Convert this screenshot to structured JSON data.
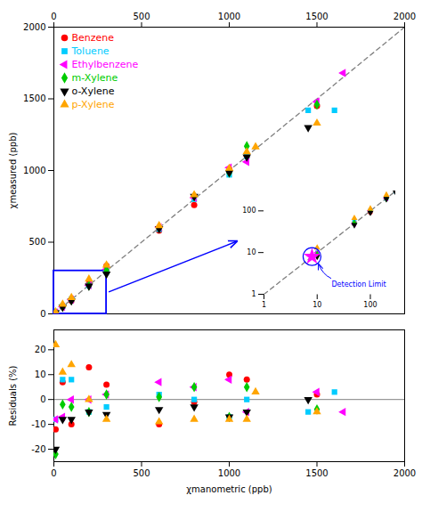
{
  "chart_data": [
    {
      "type": "scatter",
      "ylabel": "χmeasured (ppb)",
      "xlim": [
        0,
        2000
      ],
      "ylim": [
        0,
        2000
      ],
      "xticks": [
        0,
        500,
        1000,
        1500,
        2000
      ],
      "yticks": [
        0,
        500,
        1000,
        1500,
        2000
      ],
      "legend": "upper left",
      "diagonal": {
        "line_style": "dashed"
      },
      "zoom_box": {
        "x": [
          0,
          300
        ],
        "y": [
          0,
          300
        ],
        "color": "blue"
      },
      "series": [
        {
          "name": "Benzene",
          "color": "red",
          "marker": "circle",
          "x": [
            10,
            50,
            100,
            200,
            300,
            600,
            800,
            1000,
            1100,
            1500
          ],
          "values": [
            9,
            52,
            92,
            210,
            335,
            580,
            760,
            1010,
            1100,
            1450
          ]
        },
        {
          "name": "Toluene",
          "color": "#00ccff",
          "marker": "square",
          "x": [
            10,
            50,
            100,
            200,
            300,
            600,
            800,
            1000,
            1100,
            1450,
            1600
          ],
          "values": [
            10,
            54,
            102,
            198,
            295,
            590,
            800,
            970,
            1100,
            1420,
            1420
          ]
        },
        {
          "name": "Ethylbenzene",
          "color": "magenta",
          "marker": "triangle-left",
          "x": [
            10,
            50,
            100,
            200,
            300,
            600,
            800,
            1000,
            1100,
            1500,
            1650
          ],
          "values": [
            10,
            49,
            100,
            200,
            310,
            605,
            810,
            1020,
            1060,
            1480,
            1680
          ]
        },
        {
          "name": "m-Xylene",
          "color": "#00cc00",
          "marker": "diamond",
          "x": [
            10,
            50,
            100,
            200,
            300,
            600,
            800,
            1000,
            1100,
            1500
          ],
          "values": [
            9,
            51,
            97,
            197,
            305,
            600,
            820,
            985,
            1170,
            1460
          ]
        },
        {
          "name": "o-Xylene",
          "color": "black",
          "marker": "triangle-down",
          "x": [
            10,
            50,
            100,
            200,
            300,
            600,
            800,
            1000,
            1100,
            1450
          ],
          "values": [
            8,
            46,
            91,
            194,
            278,
            595,
            820,
            985,
            1095,
            1300
          ]
        },
        {
          "name": "p-Xylene",
          "color": "orange",
          "marker": "triangle-up",
          "x": [
            10,
            50,
            100,
            200,
            300,
            600,
            800,
            1000,
            1100,
            1150,
            1500
          ],
          "values": [
            13,
            67,
            113,
            242,
            340,
            615,
            830,
            1015,
            1130,
            1165,
            1330
          ]
        }
      ]
    },
    {
      "type": "scatter",
      "xlabel": "χmanometric (ppb)",
      "ylabel": "Residuals (%)",
      "xlim": [
        0,
        2000
      ],
      "ylim": [
        -25,
        28
      ],
      "xticks": [
        0,
        500,
        1000,
        1500,
        2000
      ],
      "yticks": [
        -20,
        -10,
        0,
        10,
        20
      ],
      "baseline": 0,
      "series": [
        {
          "name": "Benzene",
          "color": "red",
          "marker": "circle",
          "x": [
            10,
            50,
            100,
            200,
            300,
            600,
            800,
            1000,
            1100,
            1500
          ],
          "values": [
            -12,
            7,
            -10,
            13,
            6,
            -10,
            -1,
            10,
            8,
            2
          ]
        },
        {
          "name": "Toluene",
          "color": "#00ccff",
          "marker": "square",
          "x": [
            10,
            50,
            100,
            200,
            300,
            600,
            800,
            1000,
            1100,
            1450,
            1600
          ],
          "values": [
            -8,
            8,
            8,
            -5,
            -3,
            2,
            0,
            -7,
            0,
            -5,
            3
          ]
        },
        {
          "name": "Ethylbenzene",
          "color": "magenta",
          "marker": "triangle-left",
          "x": [
            10,
            50,
            100,
            200,
            300,
            600,
            800,
            1000,
            1100,
            1500,
            1650
          ],
          "values": [
            -8,
            -7,
            0,
            0,
            2,
            7,
            5,
            8,
            -5,
            3,
            -5
          ]
        },
        {
          "name": "m-Xylene",
          "color": "#00cc00",
          "marker": "diamond",
          "x": [
            10,
            50,
            100,
            200,
            300,
            600,
            800,
            1000,
            1100,
            1500
          ],
          "values": [
            -22,
            -2,
            -3,
            -5,
            2,
            1,
            5,
            -7,
            5,
            -4
          ]
        },
        {
          "name": "o-Xylene",
          "color": "black",
          "marker": "triangle-down",
          "x": [
            10,
            50,
            100,
            200,
            300,
            600,
            800,
            1000,
            1100,
            1450
          ],
          "values": [
            -20,
            -8,
            -8,
            -5,
            -6,
            -4,
            -3,
            -7,
            -5,
            0
          ]
        },
        {
          "name": "p-Xylene",
          "color": "orange",
          "marker": "triangle-up",
          "x": [
            10,
            50,
            100,
            200,
            300,
            600,
            800,
            1000,
            1100,
            1150,
            1500
          ],
          "values": [
            22,
            11,
            14,
            0,
            -8,
            -9,
            -8,
            -8,
            -8,
            3,
            -5
          ]
        }
      ]
    },
    {
      "type": "scatter",
      "log": true,
      "xlim": [
        1,
        300
      ],
      "ylim": [
        1,
        300
      ],
      "xticks": [
        1,
        10,
        100
      ],
      "yticks": [
        1,
        10,
        100
      ],
      "diagonal": {
        "line_style": "dashed"
      },
      "detection_limit": {
        "x": 8,
        "y": 8,
        "color": "magenta",
        "marker": "star"
      },
      "annotations": [
        {
          "text": "Detection Limit",
          "x": 8,
          "y": 8,
          "color": "blue"
        }
      ],
      "series": [
        {
          "name": "Benzene",
          "color": "red",
          "marker": "circle",
          "x": [
            10,
            50,
            100,
            200
          ],
          "values": [
            9,
            52,
            92,
            210
          ]
        },
        {
          "name": "Toluene",
          "color": "#00ccff",
          "marker": "square",
          "x": [
            10,
            50,
            100,
            200,
            300
          ],
          "values": [
            10,
            54,
            102,
            198,
            295
          ]
        },
        {
          "name": "Ethylbenzene",
          "color": "magenta",
          "marker": "triangle-left",
          "x": [
            10,
            50,
            100,
            200
          ],
          "values": [
            10,
            49,
            100,
            200
          ]
        },
        {
          "name": "m-Xylene",
          "color": "#00cc00",
          "marker": "diamond",
          "x": [
            10,
            50,
            100,
            200
          ],
          "values": [
            9,
            51,
            97,
            197
          ]
        },
        {
          "name": "o-Xylene",
          "color": "black",
          "marker": "triangle-down",
          "x": [
            10,
            50,
            100,
            200,
            300
          ],
          "values": [
            8,
            46,
            91,
            194,
            278
          ]
        },
        {
          "name": "p-Xylene",
          "color": "orange",
          "marker": "triangle-up",
          "x": [
            10,
            50,
            100,
            200
          ],
          "values": [
            13,
            67,
            113,
            242
          ]
        }
      ]
    }
  ]
}
